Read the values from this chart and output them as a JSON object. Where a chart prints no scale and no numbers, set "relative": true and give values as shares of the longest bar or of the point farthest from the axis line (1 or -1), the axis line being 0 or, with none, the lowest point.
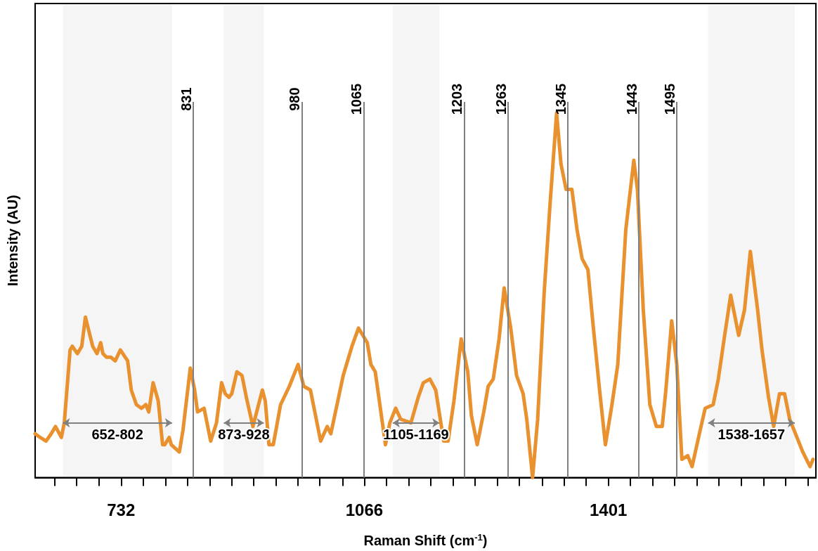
{
  "chart_data": {
    "type": "line",
    "xlabel": "Raman Shift (cm$^{-1}$)",
    "ylabel": "Intensity (AU)",
    "relative": true,
    "grid": false,
    "marker": "none",
    "line_style": "solid",
    "xlim": [
      614,
      1686
    ],
    "xticks": [
      {
        "value": 641,
        "label": null
      },
      {
        "value": 671,
        "label": null
      },
      {
        "value": 702,
        "label": null
      },
      732,
      {
        "value": 762,
        "label": null
      },
      {
        "value": 793,
        "label": null
      },
      {
        "value": 823,
        "label": null
      },
      {
        "value": 854,
        "label": null
      },
      {
        "value": 884,
        "label": null
      },
      {
        "value": 914,
        "label": null
      },
      {
        "value": 945,
        "label": null
      },
      {
        "value": 975,
        "label": null
      },
      {
        "value": 1005,
        "label": null
      },
      {
        "value": 1036,
        "label": null
      },
      1066,
      {
        "value": 1096,
        "label": null
      },
      {
        "value": 1127,
        "label": null
      },
      {
        "value": 1157,
        "label": null
      },
      {
        "value": 1188,
        "label": null
      },
      {
        "value": 1218,
        "label": null
      },
      {
        "value": 1249,
        "label": null
      },
      {
        "value": 1279,
        "label": null
      },
      {
        "value": 1310,
        "label": null
      },
      {
        "value": 1340,
        "label": null
      },
      {
        "value": 1370,
        "label": null
      },
      1401,
      {
        "value": 1431,
        "label": null
      },
      {
        "value": 1462,
        "label": null
      },
      {
        "value": 1492,
        "label": null
      },
      {
        "value": 1523,
        "label": null
      },
      {
        "value": 1553,
        "label": null
      },
      {
        "value": 1583,
        "label": null
      },
      {
        "value": 1614,
        "label": null
      },
      {
        "value": 1644,
        "label": null
      },
      {
        "value": 1675,
        "label": null
      }
    ],
    "series": [
      {
        "color": "#e8912e",
        "x": [
          614,
          621,
          629,
          636,
          642,
          650,
          654,
          662,
          665,
          672,
          678,
          683,
          688,
          693,
          699,
          704,
          707,
          712,
          718,
          724,
          731,
          741,
          746,
          753,
          760,
          766,
          770,
          776,
          783,
          789,
          792,
          798,
          801,
          812,
          817,
          827,
          833,
          837,
          846,
          850,
          855,
          863,
          870,
          875,
          880,
          884,
          891,
          898,
          904,
          913,
          926,
          930,
          935,
          941,
          951,
          963,
          975,
          983,
          992,
          1006,
          1015,
          1020,
          1037,
          1049,
          1058,
          1070,
          1075,
          1081,
          1088,
          1095,
          1101,
          1109,
          1116,
          1130,
          1140,
          1147,
          1156,
          1164,
          1175,
          1181,
          1189,
          1199,
          1208,
          1213,
          1221,
          1230,
          1236,
          1243,
          1251,
          1258,
          1267,
          1275,
          1284,
          1289,
          1297,
          1304,
          1313,
          1321,
          1330,
          1336,
          1343,
          1351,
          1358,
          1365,
          1373,
          1380,
          1389,
          1397,
          1406,
          1414,
          1425,
          1436,
          1441,
          1449,
          1458,
          1467,
          1475,
          1480,
          1488,
          1495,
          1502,
          1510,
          1516,
          1526,
          1534,
          1545,
          1552,
          1560,
          1569,
          1580,
          1588,
          1596,
          1606,
          1612,
          1621,
          1628,
          1636,
          1643,
          1650,
          1660,
          1668,
          1678,
          1682
        ],
        "values": [
          0.12,
          0.11,
          0.1,
          0.12,
          0.14,
          0.11,
          0.15,
          0.35,
          0.36,
          0.34,
          0.36,
          0.44,
          0.4,
          0.36,
          0.34,
          0.37,
          0.34,
          0.33,
          0.33,
          0.32,
          0.35,
          0.32,
          0.24,
          0.2,
          0.19,
          0.2,
          0.18,
          0.26,
          0.21,
          0.09,
          0.09,
          0.11,
          0.09,
          0.07,
          0.13,
          0.3,
          0.24,
          0.18,
          0.19,
          0.15,
          0.1,
          0.15,
          0.26,
          0.23,
          0.22,
          0.23,
          0.29,
          0.28,
          0.22,
          0.14,
          0.24,
          0.21,
          0.09,
          0.09,
          0.2,
          0.25,
          0.31,
          0.25,
          0.24,
          0.1,
          0.14,
          0.12,
          0.28,
          0.36,
          0.41,
          0.37,
          0.31,
          0.29,
          0.19,
          0.09,
          0.15,
          0.19,
          0.16,
          0.15,
          0.22,
          0.26,
          0.27,
          0.24,
          0.1,
          0.1,
          0.21,
          0.38,
          0.29,
          0.17,
          0.09,
          0.18,
          0.25,
          0.27,
          0.38,
          0.52,
          0.41,
          0.28,
          0.23,
          0.16,
          0,
          0.16,
          0.51,
          0.75,
          1,
          0.86,
          0.79,
          0.79,
          0.68,
          0.6,
          0.57,
          0.42,
          0.24,
          0.09,
          0.2,
          0.31,
          0.68,
          0.87,
          0.79,
          0.46,
          0.2,
          0.14,
          0.14,
          0.24,
          0.43,
          0.31,
          0.05,
          0.06,
          0.03,
          0.12,
          0.19,
          0.2,
          0.27,
          0.38,
          0.5,
          0.39,
          0.46,
          0.62,
          0.46,
          0.35,
          0.22,
          0.14,
          0.23,
          0.23,
          0.16,
          0.11,
          0.07,
          0.03,
          0.05
        ]
      }
    ],
    "ref_lines": [
      {
        "axis": "x",
        "value": 831,
        "label": "831",
        "color": "#808080"
      },
      {
        "axis": "x",
        "value": 980,
        "label": "980",
        "color": "#808080"
      },
      {
        "axis": "x",
        "value": 1065,
        "label": "1065",
        "color": "#808080"
      },
      {
        "axis": "x",
        "value": 1203,
        "label": "1203",
        "color": "#808080"
      },
      {
        "axis": "x",
        "value": 1263,
        "label": "1263",
        "color": "#808080"
      },
      {
        "axis": "x",
        "value": 1345,
        "label": "1345",
        "color": "#808080"
      },
      {
        "axis": "x",
        "value": 1443,
        "label": "1443",
        "color": "#808080"
      },
      {
        "axis": "x",
        "value": 1495,
        "label": "1495",
        "color": "#808080"
      }
    ],
    "bands": [
      {
        "axis": "x",
        "from": 652,
        "to": 802,
        "label": "652-802",
        "color": "#808080"
      },
      {
        "axis": "x",
        "from": 873,
        "to": 928,
        "label": "873-928",
        "color": "#808080"
      },
      {
        "axis": "x",
        "from": 1105,
        "to": 1169,
        "label": "1105-1169",
        "color": "#808080"
      },
      {
        "axis": "x",
        "from": 1538,
        "to": 1657,
        "label": "1538-1657",
        "color": "#808080"
      }
    ]
  }
}
